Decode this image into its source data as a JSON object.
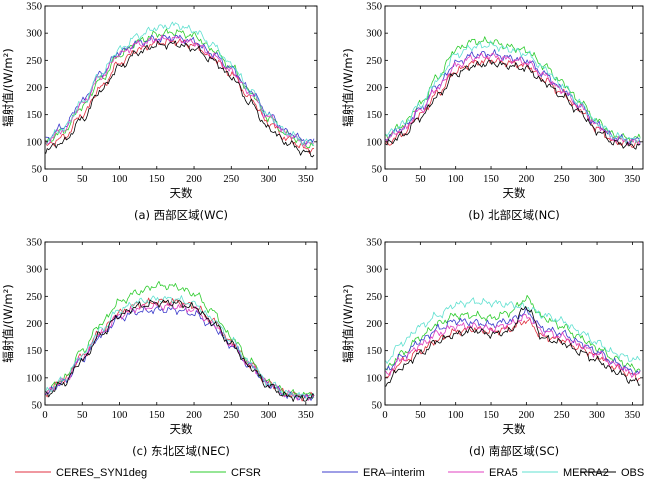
{
  "chart_data": [
    {
      "type": "line",
      "caption": "(a) 西部区域(WC)",
      "xlabel": "天数",
      "ylabel": "辐射值/(W/m²)",
      "xlim": [
        0,
        365
      ],
      "ylim": [
        50,
        350
      ],
      "xticks": [
        0,
        50,
        100,
        150,
        200,
        250,
        300,
        350
      ],
      "yticks": [
        50,
        100,
        150,
        200,
        250,
        300,
        350
      ],
      "series": [
        {
          "name": "CERES_SYN1deg",
          "x": [
            0,
            25,
            50,
            75,
            100,
            125,
            150,
            175,
            200,
            225,
            250,
            275,
            300,
            325,
            350,
            360
          ],
          "values": [
            92,
            108,
            150,
            200,
            245,
            270,
            282,
            285,
            278,
            255,
            225,
            180,
            135,
            105,
            88,
            85
          ]
        },
        {
          "name": "CFSR",
          "x": [
            0,
            25,
            50,
            75,
            100,
            125,
            150,
            175,
            200,
            225,
            250,
            275,
            300,
            325,
            350,
            360
          ],
          "values": [
            100,
            120,
            165,
            215,
            260,
            285,
            298,
            302,
            295,
            270,
            238,
            192,
            145,
            113,
            95,
            92
          ]
        },
        {
          "name": "ERA-interim",
          "x": [
            0,
            25,
            50,
            75,
            100,
            125,
            150,
            175,
            200,
            225,
            250,
            275,
            300,
            325,
            350,
            360
          ],
          "values": [
            105,
            128,
            175,
            225,
            265,
            282,
            290,
            292,
            285,
            262,
            235,
            195,
            150,
            118,
            102,
            100
          ]
        },
        {
          "name": "ERA5",
          "x": [
            0,
            25,
            50,
            75,
            100,
            125,
            150,
            175,
            200,
            225,
            250,
            275,
            300,
            325,
            350,
            360
          ],
          "values": [
            100,
            122,
            170,
            220,
            262,
            280,
            288,
            290,
            282,
            258,
            230,
            190,
            145,
            114,
            98,
            95
          ]
        },
        {
          "name": "MERRA2",
          "x": [
            0,
            25,
            50,
            75,
            100,
            125,
            150,
            175,
            200,
            225,
            250,
            275,
            300,
            325,
            350,
            360
          ],
          "values": [
            102,
            125,
            172,
            225,
            270,
            295,
            310,
            315,
            305,
            278,
            242,
            195,
            148,
            116,
            100,
            98
          ]
        },
        {
          "name": "OBS",
          "x": [
            0,
            25,
            50,
            75,
            100,
            125,
            150,
            175,
            200,
            225,
            250,
            275,
            300,
            325,
            350,
            360
          ],
          "values": [
            85,
            100,
            142,
            195,
            238,
            265,
            278,
            280,
            272,
            250,
            220,
            172,
            125,
            98,
            80,
            78
          ]
        }
      ]
    },
    {
      "type": "line",
      "caption": "(b) 北部区域(NC)",
      "xlabel": "天数",
      "ylabel": "辐射值/(W/m²)",
      "xlim": [
        0,
        365
      ],
      "ylim": [
        50,
        350
      ],
      "xticks": [
        0,
        50,
        100,
        150,
        200,
        250,
        300,
        350
      ],
      "yticks": [
        50,
        100,
        150,
        200,
        250,
        300,
        350
      ],
      "series": [
        {
          "name": "CERES_SYN1deg",
          "x": [
            0,
            25,
            50,
            75,
            100,
            125,
            150,
            175,
            200,
            225,
            250,
            275,
            300,
            325,
            350,
            360
          ],
          "values": [
            95,
            115,
            150,
            190,
            230,
            245,
            250,
            245,
            240,
            215,
            190,
            160,
            125,
            100,
            95,
            98
          ]
        },
        {
          "name": "CFSR",
          "x": [
            0,
            25,
            50,
            75,
            100,
            125,
            150,
            175,
            200,
            225,
            250,
            275,
            300,
            325,
            350,
            360
          ],
          "values": [
            110,
            130,
            170,
            220,
            270,
            285,
            285,
            275,
            268,
            240,
            210,
            175,
            138,
            112,
            105,
            108
          ]
        },
        {
          "name": "ERA-interim",
          "x": [
            0,
            25,
            50,
            75,
            100,
            125,
            150,
            175,
            200,
            225,
            250,
            275,
            300,
            325,
            350,
            360
          ],
          "values": [
            108,
            125,
            160,
            205,
            245,
            260,
            262,
            255,
            250,
            225,
            198,
            168,
            132,
            108,
            102,
            105
          ]
        },
        {
          "name": "ERA5",
          "x": [
            0,
            25,
            50,
            75,
            100,
            125,
            150,
            175,
            200,
            225,
            250,
            275,
            300,
            325,
            350,
            360
          ],
          "values": [
            105,
            122,
            158,
            200,
            240,
            255,
            258,
            252,
            246,
            222,
            195,
            165,
            130,
            105,
            100,
            102
          ]
        },
        {
          "name": "MERRA2",
          "x": [
            0,
            25,
            50,
            75,
            100,
            125,
            150,
            175,
            200,
            225,
            250,
            275,
            300,
            325,
            350,
            360
          ],
          "values": [
            112,
            132,
            168,
            215,
            260,
            275,
            278,
            270,
            262,
            235,
            205,
            172,
            135,
            110,
            104,
            106
          ]
        },
        {
          "name": "OBS",
          "x": [
            0,
            25,
            50,
            75,
            100,
            125,
            150,
            175,
            200,
            225,
            250,
            275,
            300,
            325,
            350,
            360
          ],
          "values": [
            95,
            112,
            145,
            185,
            225,
            240,
            245,
            240,
            235,
            210,
            185,
            155,
            120,
            98,
            92,
            95
          ]
        }
      ]
    },
    {
      "type": "line",
      "caption": "(c) 东北区域(NEC)",
      "xlabel": "天数",
      "ylabel": "辐射值/(W/m²)",
      "xlim": [
        0,
        365
      ],
      "ylim": [
        50,
        350
      ],
      "xticks": [
        0,
        50,
        100,
        150,
        200,
        250,
        300,
        350
      ],
      "yticks": [
        50,
        100,
        150,
        200,
        250,
        300,
        350
      ],
      "series": [
        {
          "name": "CERES_SYN1deg",
          "x": [
            0,
            25,
            50,
            75,
            100,
            125,
            150,
            175,
            200,
            225,
            250,
            275,
            300,
            325,
            350,
            360
          ],
          "values": [
            72,
            95,
            140,
            185,
            220,
            235,
            240,
            240,
            232,
            205,
            165,
            125,
            90,
            70,
            65,
            68
          ]
        },
        {
          "name": "CFSR",
          "x": [
            0,
            25,
            50,
            75,
            100,
            125,
            150,
            175,
            200,
            225,
            250,
            275,
            300,
            325,
            350,
            360
          ],
          "values": [
            75,
            98,
            150,
            200,
            240,
            258,
            270,
            268,
            255,
            222,
            175,
            130,
            92,
            72,
            68,
            70
          ]
        },
        {
          "name": "ERA-interim",
          "x": [
            0,
            25,
            50,
            75,
            100,
            125,
            150,
            175,
            200,
            225,
            250,
            275,
            300,
            325,
            350,
            360
          ],
          "values": [
            70,
            92,
            135,
            178,
            210,
            222,
            225,
            225,
            218,
            195,
            160,
            122,
            88,
            68,
            64,
            66
          ]
        },
        {
          "name": "ERA5",
          "x": [
            0,
            25,
            50,
            75,
            100,
            125,
            150,
            175,
            200,
            225,
            250,
            275,
            300,
            325,
            350,
            360
          ],
          "values": [
            72,
            94,
            138,
            182,
            215,
            228,
            232,
            232,
            225,
            200,
            162,
            124,
            89,
            69,
            65,
            67
          ]
        },
        {
          "name": "MERRA2",
          "x": [
            0,
            25,
            50,
            75,
            100,
            125,
            150,
            175,
            200,
            225,
            250,
            275,
            300,
            325,
            350,
            360
          ],
          "values": [
            74,
            96,
            142,
            188,
            225,
            240,
            245,
            245,
            236,
            208,
            168,
            127,
            90,
            71,
            66,
            69
          ]
        },
        {
          "name": "OBS",
          "x": [
            0,
            25,
            50,
            75,
            100,
            125,
            150,
            175,
            200,
            225,
            250,
            275,
            300,
            325,
            350,
            360
          ],
          "values": [
            68,
            90,
            132,
            180,
            215,
            232,
            238,
            238,
            230,
            202,
            162,
            120,
            85,
            66,
            62,
            64
          ]
        }
      ]
    },
    {
      "type": "line",
      "caption": "(d) 南部区域(SC)",
      "xlabel": "天数",
      "ylabel": "辐射值/(W/m²)",
      "xlim": [
        0,
        365
      ],
      "ylim": [
        50,
        350
      ],
      "xticks": [
        0,
        50,
        100,
        150,
        200,
        250,
        300,
        350
      ],
      "yticks": [
        50,
        100,
        150,
        200,
        250,
        300,
        350
      ],
      "series": [
        {
          "name": "CERES_SYN1deg",
          "x": [
            0,
            25,
            50,
            75,
            100,
            125,
            150,
            175,
            200,
            225,
            250,
            275,
            300,
            325,
            350,
            360
          ],
          "values": [
            100,
            130,
            150,
            170,
            185,
            190,
            185,
            190,
            205,
            175,
            170,
            155,
            140,
            120,
            105,
            100
          ]
        },
        {
          "name": "CFSR",
          "x": [
            0,
            25,
            50,
            75,
            100,
            125,
            150,
            175,
            200,
            225,
            250,
            275,
            300,
            325,
            350,
            360
          ],
          "values": [
            115,
            145,
            175,
            200,
            215,
            215,
            210,
            220,
            245,
            210,
            195,
            175,
            155,
            135,
            120,
            115
          ]
        },
        {
          "name": "ERA-interim",
          "x": [
            0,
            25,
            50,
            75,
            100,
            125,
            150,
            175,
            200,
            225,
            250,
            275,
            300,
            325,
            350,
            360
          ],
          "values": [
            112,
            140,
            168,
            190,
            205,
            202,
            198,
            205,
            220,
            190,
            182,
            165,
            148,
            128,
            112,
            110
          ]
        },
        {
          "name": "ERA5",
          "x": [
            0,
            25,
            50,
            75,
            100,
            125,
            150,
            175,
            200,
            225,
            250,
            275,
            300,
            325,
            350,
            360
          ],
          "values": [
            105,
            135,
            160,
            182,
            195,
            195,
            190,
            198,
            212,
            185,
            176,
            160,
            144,
            124,
            108,
            105
          ]
        },
        {
          "name": "MERRA2",
          "x": [
            0,
            25,
            50,
            75,
            100,
            125,
            150,
            175,
            200,
            225,
            250,
            275,
            300,
            325,
            350,
            360
          ],
          "values": [
            130,
            165,
            195,
            215,
            235,
            240,
            238,
            235,
            230,
            215,
            205,
            185,
            165,
            145,
            135,
            132
          ]
        },
        {
          "name": "OBS",
          "x": [
            0,
            25,
            50,
            75,
            100,
            125,
            150,
            175,
            200,
            225,
            250,
            275,
            300,
            325,
            350,
            360
          ],
          "values": [
            90,
            120,
            145,
            168,
            180,
            188,
            180,
            185,
            230,
            172,
            165,
            148,
            132,
            112,
            95,
            90
          ]
        }
      ]
    }
  ],
  "legend": [
    {
      "name": "CERES_SYN1deg",
      "color": "#e03040"
    },
    {
      "name": "CFSR",
      "color": "#2ecc2e"
    },
    {
      "name": "ERA–interim",
      "color": "#3c3ccc"
    },
    {
      "name": "ERA5",
      "color": "#e040c0"
    },
    {
      "name": "MERRA2",
      "color": "#60e0d0"
    },
    {
      "name": "OBS",
      "color": "#000000"
    }
  ]
}
